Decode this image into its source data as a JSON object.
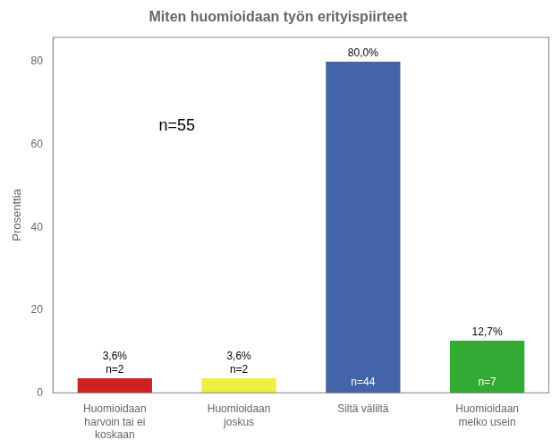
{
  "chart_data": {
    "type": "bar",
    "title": "Miten huomioidaan työn erityispiirteet",
    "categories": [
      "Huomioidaan\nharvoin tai ei\nkoskaan",
      "Huomioidaan\njoskus",
      "Siltä väliltä",
      "Huomioidaan\nmelko usein"
    ],
    "values": [
      3.6,
      3.6,
      80.0,
      12.7
    ],
    "value_labels": [
      "3,6%",
      "3,6%",
      "80,0%",
      "12,7%"
    ],
    "count_labels": [
      "n=2",
      "n=2",
      "n=44",
      "n=7"
    ],
    "colors": [
      "#cc2222",
      "#eeee44",
      "#4464aa",
      "#33aa33"
    ],
    "ylabel": "Prosenttia",
    "ylim": [
      0,
      86
    ],
    "yticks": [
      0,
      20,
      40,
      60,
      80
    ],
    "annotations": [
      "n=55"
    ],
    "data_labels": true,
    "grid": false
  }
}
